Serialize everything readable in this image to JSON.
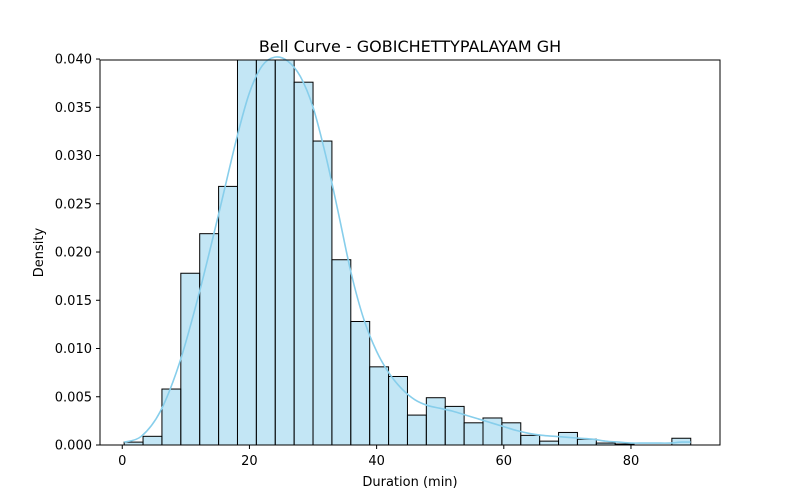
{
  "chart_data": {
    "type": "bar",
    "title": "Bell Curve - GOBICHETTYPALAYAM GH",
    "xlabel": "Duration (min)",
    "ylabel": "Density",
    "xlim": [
      -3.5,
      94
    ],
    "ylim": [
      0,
      0.0399
    ],
    "xticks": [
      0,
      20,
      40,
      60,
      80
    ],
    "yticks": [
      0.0,
      0.005,
      0.01,
      0.015,
      0.02,
      0.025,
      0.03,
      0.035,
      0.04
    ],
    "ytick_labels": [
      "0.000",
      "0.005",
      "0.010",
      "0.015",
      "0.020",
      "0.025",
      "0.030",
      "0.035",
      "0.040"
    ],
    "grid": false,
    "bars": {
      "bin_edges": [
        0.3,
        3.27,
        6.24,
        9.21,
        12.18,
        15.15,
        18.12,
        21.09,
        24.06,
        27.03,
        30.0,
        32.97,
        35.94,
        38.91,
        41.88,
        44.85,
        47.82,
        50.79,
        53.76,
        56.73,
        59.7,
        62.67,
        65.64,
        68.61,
        71.58,
        74.55,
        77.52,
        80.49,
        83.46,
        86.43,
        89.4
      ],
      "values": [
        0.0003,
        0.0009,
        0.0058,
        0.0178,
        0.0219,
        0.0268,
        0.0401,
        0.0408,
        0.0401,
        0.0376,
        0.0315,
        0.0192,
        0.0128,
        0.0081,
        0.0071,
        0.0031,
        0.0049,
        0.004,
        0.0023,
        0.0028,
        0.0023,
        0.001,
        0.0004,
        0.0013,
        0.0006,
        0.0002,
        0.0001,
        0.0,
        0.0,
        0.0007
      ],
      "fill_color": "#87ceeb",
      "fill_opacity": 0.5,
      "edge_color": "#000000"
    },
    "kde": {
      "x": [
        0.3,
        3,
        6,
        9,
        12,
        15,
        18,
        20,
        22,
        24,
        26,
        28,
        30,
        32,
        34,
        36,
        38,
        40,
        42,
        44,
        46,
        48,
        50,
        52,
        54,
        56,
        58,
        60,
        62,
        64,
        66,
        68,
        70,
        72,
        74,
        76,
        78,
        80,
        82,
        84,
        86,
        88,
        89.4
      ],
      "y": [
        0.0003,
        0.0009,
        0.0035,
        0.0085,
        0.0155,
        0.0235,
        0.0318,
        0.0365,
        0.0393,
        0.0402,
        0.0398,
        0.0382,
        0.035,
        0.03,
        0.024,
        0.0178,
        0.013,
        0.0097,
        0.0074,
        0.0058,
        0.0047,
        0.0041,
        0.0038,
        0.0035,
        0.0031,
        0.0027,
        0.0023,
        0.0019,
        0.0015,
        0.0012,
        0.001,
        0.0009,
        0.0008,
        0.0007,
        0.0006,
        0.0004,
        0.0003,
        0.0002,
        0.0002,
        0.0002,
        0.0002,
        0.0003,
        0.0003
      ],
      "color": "#87ceeb"
    }
  }
}
